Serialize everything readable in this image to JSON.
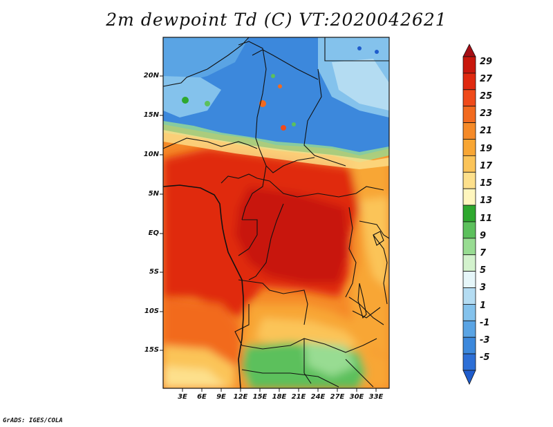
{
  "title": "2m dewpoint Td (C) VT:2020042621",
  "y_axis_labels": [
    "20N",
    "15N",
    "10N",
    "5N",
    "EQ",
    "5S",
    "10S",
    "15S"
  ],
  "x_axis_labels": [
    "3E",
    "6E",
    "9E",
    "12E",
    "15E",
    "18E",
    "21E",
    "24E",
    "27E",
    "30E",
    "33E"
  ],
  "colorbar": {
    "labels": [
      "29",
      "27",
      "25",
      "23",
      "21",
      "19",
      "17",
      "15",
      "13",
      "11",
      "9",
      "7",
      "5",
      "3",
      "1",
      "-1",
      "-3",
      "-5"
    ],
    "colors": [
      "#a50f15",
      "#c8170c",
      "#e0290f",
      "#ef4a1a",
      "#f26a1f",
      "#f58a28",
      "#f8a634",
      "#fbc459",
      "#fde08c",
      "#fff6be",
      "#2ea82e",
      "#5cc05c",
      "#98dc92",
      "#d3f2cd",
      "#e6f6f9",
      "#b4dcf2",
      "#84c2ec",
      "#5aa4e4",
      "#3c88dc",
      "#2d6fd6",
      "#1f5ccc"
    ]
  },
  "credit": "GrADS: IGES/COLA"
}
